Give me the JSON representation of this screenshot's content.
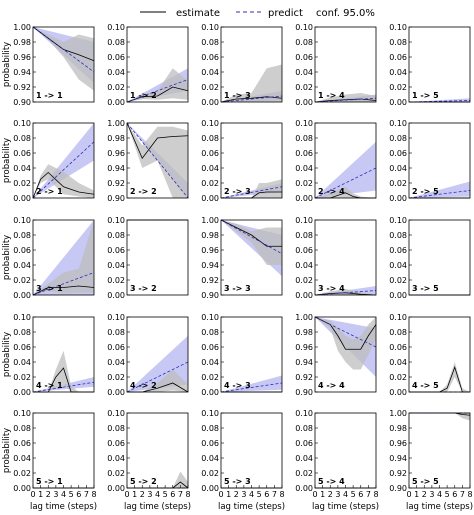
{
  "chart_data": {
    "type": "line",
    "grid_rows": 5,
    "grid_cols": 5,
    "x": [
      0,
      1,
      2,
      3,
      4,
      5,
      6,
      7,
      8
    ],
    "x_ticks": [
      "0",
      "1",
      "2",
      "3",
      "4",
      "5",
      "6",
      "7",
      "8"
    ],
    "xlabel": "lag time (steps)",
    "ylabel": "probability",
    "diag_ylim": [
      0.9,
      1.0
    ],
    "offdiag_ylim": [
      0.0,
      0.1
    ],
    "diag_yticks": [
      "0.90",
      "0.92",
      "0.94",
      "0.96",
      "0.98",
      "1.00"
    ],
    "offdiag_yticks": [
      "0.00",
      "0.02",
      "0.04",
      "0.06",
      "0.08",
      "0.10"
    ],
    "legend": {
      "position": "top-center",
      "estimate": "estimate",
      "predict": "predict",
      "conf": "conf. 95.0%"
    },
    "colors": {
      "estimate": "#000000",
      "estimate_band": "#bdbdbd",
      "predict": "#2e2eb8",
      "predict_band": "#aaaaee"
    },
    "panels": [
      {
        "row": 1,
        "col": 1,
        "label": "1 -> 1",
        "est_x": [
          0,
          2,
          4,
          6,
          8
        ],
        "estimate": [
          1.0,
          0.985,
          0.97,
          0.963,
          0.955
        ],
        "est_lo": [
          1.0,
          0.983,
          0.96,
          0.93,
          0.915
        ],
        "est_hi": [
          1.0,
          0.99,
          0.98,
          0.99,
          0.985
        ],
        "pred_x": [
          0,
          8
        ],
        "predict": [
          1.0,
          0.94
        ],
        "pred_lo": [
          1.0,
          0.925
        ],
        "pred_hi": [
          1.0,
          0.98
        ]
      },
      {
        "row": 1,
        "col": 2,
        "label": "1 -> 2",
        "est_x": [
          0,
          2,
          4,
          6,
          8
        ],
        "estimate": [
          0.0,
          0.007,
          0.008,
          0.02,
          0.015
        ],
        "est_lo": [
          0.0,
          0.004,
          0.003,
          0.005,
          0.003
        ],
        "est_hi": [
          0.0,
          0.01,
          0.015,
          0.045,
          0.028
        ],
        "pred_x": [
          0,
          8
        ],
        "predict": [
          0.0,
          0.03
        ],
        "pred_lo": [
          0.0,
          0.015
        ],
        "pred_hi": [
          0.0,
          0.045
        ]
      },
      {
        "row": 1,
        "col": 3,
        "label": "1 -> 3",
        "est_x": [
          0,
          2,
          4,
          6,
          8
        ],
        "estimate": [
          0.0,
          0.004,
          0.005,
          0.007,
          0.005
        ],
        "est_lo": [
          0.0,
          0.0,
          0.0,
          0.0,
          0.0
        ],
        "est_hi": [
          0.0,
          0.01,
          0.012,
          0.045,
          0.05
        ],
        "pred_x": [
          0,
          8
        ],
        "predict": [
          0.0,
          0.008
        ],
        "pred_lo": [
          0.0,
          0.002
        ],
        "pred_hi": [
          0.0,
          0.015
        ]
      },
      {
        "row": 1,
        "col": 4,
        "label": "1 -> 4",
        "est_x": [
          0,
          2,
          4,
          6,
          8
        ],
        "estimate": [
          0.0,
          0.002,
          0.003,
          0.004,
          0.002
        ],
        "est_lo": [
          0.0,
          0.0,
          0.0,
          0.0,
          0.0
        ],
        "est_hi": [
          0.0,
          0.006,
          0.01,
          0.012,
          0.008
        ],
        "pred_x": [
          0,
          8
        ],
        "predict": [
          0.0,
          0.005
        ],
        "pred_lo": [
          0.0,
          0.001
        ],
        "pred_hi": [
          0.0,
          0.01
        ]
      },
      {
        "row": 1,
        "col": 5,
        "label": "1 -> 5",
        "est_x": [
          0,
          8
        ],
        "estimate": [
          0.0,
          0.0
        ],
        "est_lo": [
          0.0,
          0.0
        ],
        "est_hi": [
          0.0,
          0.0
        ],
        "pred_x": [
          0,
          8
        ],
        "predict": [
          0.0,
          0.002
        ],
        "pred_lo": [
          0.0,
          0.0
        ],
        "pred_hi": [
          0.0,
          0.005
        ]
      },
      {
        "row": 2,
        "col": 1,
        "label": "2 -> 1",
        "est_x": [
          0,
          1,
          2,
          4,
          6,
          8
        ],
        "estimate": [
          0.0,
          0.025,
          0.034,
          0.015,
          0.008,
          0.005
        ],
        "est_lo": [
          0.0,
          0.02,
          0.025,
          0.005,
          0.002,
          0.0
        ],
        "est_hi": [
          0.0,
          0.03,
          0.045,
          0.035,
          0.02,
          0.01
        ],
        "pred_x": [
          0,
          8
        ],
        "predict": [
          0.0,
          0.075
        ],
        "pred_lo": [
          0.0,
          0.05
        ],
        "pred_hi": [
          0.0,
          0.1
        ]
      },
      {
        "row": 2,
        "col": 2,
        "label": "2 -> 2",
        "est_x": [
          0,
          2,
          4,
          6,
          8
        ],
        "estimate": [
          1.0,
          0.953,
          0.98,
          0.982,
          0.983
        ],
        "est_lo": [
          1.0,
          0.94,
          0.95,
          0.9,
          0.9
        ],
        "est_hi": [
          1.0,
          0.97,
          0.995,
          0.995,
          0.99
        ],
        "pred_x": [
          0,
          8
        ],
        "predict": [
          1.0,
          0.88
        ],
        "pred_lo": [
          1.0,
          0.85
        ],
        "pred_hi": [
          1.0,
          0.92
        ]
      },
      {
        "row": 2,
        "col": 3,
        "label": "2 -> 3",
        "est_x": [
          0,
          2,
          4,
          5,
          6,
          8
        ],
        "estimate": [
          0.0,
          0.0,
          0.0,
          0.007,
          0.008,
          0.008
        ],
        "est_lo": [
          0.0,
          0.0,
          0.0,
          0.0,
          0.0,
          0.0
        ],
        "est_hi": [
          0.0,
          0.0,
          0.0,
          0.02,
          0.02,
          0.025
        ],
        "pred_x": [
          0,
          8
        ],
        "predict": [
          0.0,
          0.015
        ],
        "pred_lo": [
          0.0,
          0.008
        ],
        "pred_hi": [
          0.0,
          0.02
        ]
      },
      {
        "row": 2,
        "col": 4,
        "label": "2 -> 4",
        "est_x": [
          0,
          2,
          4,
          5,
          6,
          8
        ],
        "estimate": [
          0.0,
          0.0,
          0.007,
          0.002,
          0.0,
          0.0
        ],
        "est_lo": [
          0.0,
          0.0,
          0.0,
          0.0,
          0.0,
          0.0
        ],
        "est_hi": [
          0.0,
          0.006,
          0.015,
          0.006,
          0.002,
          0.0
        ],
        "pred_x": [
          0,
          8
        ],
        "predict": [
          0.0,
          0.04
        ],
        "pred_lo": [
          0.0,
          0.01
        ],
        "pred_hi": [
          0.0,
          0.075
        ]
      },
      {
        "row": 2,
        "col": 5,
        "label": "2 -> 5",
        "est_x": [
          0,
          8
        ],
        "estimate": [
          0.0,
          0.0
        ],
        "est_lo": [
          0.0,
          0.0
        ],
        "est_hi": [
          0.0,
          0.0
        ],
        "pred_x": [
          0,
          8
        ],
        "predict": [
          0.0,
          0.01
        ],
        "pred_lo": [
          0.0,
          0.002
        ],
        "pred_hi": [
          0.0,
          0.022
        ]
      },
      {
        "row": 3,
        "col": 1,
        "label": "3 -> 1",
        "est_x": [
          0,
          2,
          4,
          6,
          8
        ],
        "estimate": [
          0.0,
          0.01,
          0.01,
          0.012,
          0.01
        ],
        "est_lo": [
          0.0,
          0.005,
          0.002,
          0.003,
          0.003
        ],
        "est_hi": [
          0.0,
          0.015,
          0.03,
          0.035,
          0.1
        ],
        "pred_x": [
          0,
          8
        ],
        "predict": [
          0.0,
          0.03
        ],
        "pred_lo": [
          0.0,
          0.0
        ],
        "pred_hi": [
          0.0,
          0.1
        ]
      },
      {
        "row": 3,
        "col": 2,
        "label": "3 -> 2",
        "est_x": [
          0,
          4,
          6,
          8
        ],
        "estimate": [
          0.9,
          0.9,
          0.945,
          0.945
        ],
        "est_lo": [
          0.9,
          0.9,
          0.9,
          0.92
        ],
        "est_hi": [
          0.9,
          0.9,
          0.98,
          0.99
        ],
        "pred_x": [
          0,
          8
        ],
        "predict": [
          0.9,
          0.9
        ],
        "pred_lo": [
          0.9,
          0.9
        ],
        "pred_hi": [
          0.9,
          0.9
        ]
      },
      {
        "row": 3,
        "col": 3,
        "label": "3 -> 3",
        "est_x": [
          0,
          2,
          4,
          6,
          8
        ],
        "estimate": [
          1.0,
          0.99,
          0.98,
          0.965,
          0.965
        ],
        "est_lo": [
          1.0,
          0.985,
          0.97,
          0.94,
          0.94
        ],
        "est_hi": [
          1.0,
          0.995,
          0.985,
          0.99,
          0.99
        ],
        "pred_x": [
          0,
          8
        ],
        "predict": [
          1.0,
          0.955
        ],
        "pred_lo": [
          1.0,
          0.925
        ],
        "pred_hi": [
          1.0,
          0.98
        ]
      },
      {
        "row": 3,
        "col": 4,
        "label": "3 -> 4",
        "est_x": [
          0,
          2,
          4,
          6,
          8
        ],
        "estimate": [
          0.0,
          0.002,
          0.003,
          0.001,
          0.0
        ],
        "est_lo": [
          0.0,
          0.0,
          0.0,
          0.0,
          0.0
        ],
        "est_hi": [
          0.0,
          0.005,
          0.008,
          0.004,
          0.0
        ],
        "pred_x": [
          0,
          8
        ],
        "predict": [
          0.0,
          0.006
        ],
        "pred_lo": [
          0.0,
          0.001
        ],
        "pred_hi": [
          0.0,
          0.012
        ]
      },
      {
        "row": 3,
        "col": 5,
        "label": "3 -> 5",
        "est_x": [
          0,
          8
        ],
        "estimate": [
          0.0,
          0.0
        ],
        "est_lo": [
          0.0,
          0.0
        ],
        "est_hi": [
          0.0,
          0.0
        ],
        "pred_x": [
          0,
          8
        ],
        "predict": [
          0.0,
          0.0
        ],
        "pred_lo": [
          0.0,
          0.0
        ],
        "pred_hi": [
          0.0,
          0.0
        ]
      },
      {
        "row": 4,
        "col": 1,
        "label": "4 -> 1",
        "est_x": [
          0,
          2,
          3,
          4,
          5,
          6,
          8
        ],
        "estimate": [
          0.0,
          0.0,
          0.02,
          0.032,
          0.0,
          0.0,
          0.0
        ],
        "est_lo": [
          0.0,
          0.0,
          0.005,
          0.01,
          0.0,
          0.0,
          0.0
        ],
        "est_hi": [
          0.0,
          0.0,
          0.03,
          0.055,
          0.008,
          0.0,
          0.0
        ],
        "pred_x": [
          0,
          8
        ],
        "predict": [
          0.0,
          0.013
        ],
        "pred_lo": [
          0.0,
          0.007
        ],
        "pred_hi": [
          0.0,
          0.02
        ]
      },
      {
        "row": 4,
        "col": 2,
        "label": "4 -> 2",
        "est_x": [
          0,
          2,
          4,
          6,
          8
        ],
        "estimate": [
          0.0,
          0.0,
          0.005,
          0.012,
          0.0
        ],
        "est_lo": [
          0.0,
          0.0,
          0.0,
          0.002,
          0.0
        ],
        "est_hi": [
          0.0,
          0.0,
          0.012,
          0.03,
          0.01
        ],
        "pred_x": [
          0,
          8
        ],
        "predict": [
          0.0,
          0.04
        ],
        "pred_lo": [
          0.0,
          0.01
        ],
        "pred_hi": [
          0.0,
          0.075
        ]
      },
      {
        "row": 4,
        "col": 3,
        "label": "4 -> 3",
        "est_x": [
          0,
          8
        ],
        "estimate": [
          0.0,
          0.0
        ],
        "est_lo": [
          0.0,
          0.0
        ],
        "est_hi": [
          0.0,
          0.0
        ],
        "pred_x": [
          0,
          8
        ],
        "predict": [
          0.0,
          0.012
        ],
        "pred_lo": [
          0.0,
          0.003
        ],
        "pred_hi": [
          0.0,
          0.022
        ]
      },
      {
        "row": 4,
        "col": 4,
        "label": "4 -> 4",
        "est_x": [
          0,
          2,
          3,
          4,
          5,
          6,
          7,
          8
        ],
        "estimate": [
          1.0,
          0.99,
          0.975,
          0.957,
          0.957,
          0.957,
          0.975,
          0.99
        ],
        "est_lo": [
          1.0,
          0.985,
          0.955,
          0.94,
          0.93,
          0.93,
          0.95,
          0.97
        ],
        "est_hi": [
          1.0,
          0.995,
          0.985,
          0.975,
          0.97,
          0.975,
          0.99,
          1.0
        ],
        "pred_x": [
          0,
          8
        ],
        "predict": [
          1.0,
          0.96
        ],
        "pred_lo": [
          1.0,
          0.92
        ],
        "pred_hi": [
          1.0,
          0.985
        ]
      },
      {
        "row": 4,
        "col": 5,
        "label": "4 -> 5",
        "est_x": [
          0,
          4,
          5,
          6,
          7,
          8
        ],
        "estimate": [
          0.0,
          0.0,
          0.005,
          0.033,
          0.0,
          0.0
        ],
        "est_lo": [
          0.0,
          0.0,
          0.0,
          0.02,
          0.0,
          0.0
        ],
        "est_hi": [
          0.0,
          0.0,
          0.01,
          0.04,
          0.005,
          0.0
        ],
        "pred_x": [
          0,
          8
        ],
        "predict": [
          0.0,
          0.0
        ],
        "pred_lo": [
          0.0,
          0.0
        ],
        "pred_hi": [
          0.0,
          0.0
        ]
      },
      {
        "row": 5,
        "col": 1,
        "label": "5 -> 1",
        "est_x": [
          0,
          8
        ],
        "estimate": [
          0.0,
          0.0
        ],
        "est_lo": [
          0.0,
          0.0
        ],
        "est_hi": [
          0.0,
          0.0
        ],
        "pred_x": [
          0,
          8
        ],
        "predict": [
          0.0,
          0.0
        ],
        "pred_lo": [
          0.0,
          0.0
        ],
        "pred_hi": [
          0.0,
          0.0
        ]
      },
      {
        "row": 5,
        "col": 2,
        "label": "5 -> 2",
        "est_x": [
          0,
          4,
          6,
          7,
          8
        ],
        "estimate": [
          0.0,
          0.0,
          0.0,
          0.008,
          0.0
        ],
        "est_lo": [
          0.0,
          0.0,
          0.0,
          0.0,
          0.0
        ],
        "est_hi": [
          0.0,
          0.0,
          0.0,
          0.022,
          0.008
        ],
        "pred_x": [
          0,
          8
        ],
        "predict": [
          0.0,
          0.0
        ],
        "pred_lo": [
          0.0,
          0.0
        ],
        "pred_hi": [
          0.0,
          0.0
        ]
      },
      {
        "row": 5,
        "col": 3,
        "label": "5 -> 3",
        "est_x": [
          0,
          8
        ],
        "estimate": [
          0.0,
          0.0
        ],
        "est_lo": [
          0.0,
          0.0
        ],
        "est_hi": [
          0.0,
          0.0
        ],
        "pred_x": [
          0,
          8
        ],
        "predict": [
          0.0,
          0.0
        ],
        "pred_lo": [
          0.0,
          0.0
        ],
        "pred_hi": [
          0.0,
          0.0
        ]
      },
      {
        "row": 5,
        "col": 4,
        "label": "5 -> 4",
        "est_x": [
          0,
          8
        ],
        "estimate": [
          0.0,
          0.0
        ],
        "est_lo": [
          0.0,
          0.0
        ],
        "est_hi": [
          0.0,
          0.0
        ],
        "pred_x": [
          0,
          8
        ],
        "predict": [
          0.0,
          0.0
        ],
        "pred_lo": [
          0.0,
          0.0
        ],
        "pred_hi": [
          0.0,
          0.0
        ]
      },
      {
        "row": 5,
        "col": 5,
        "label": "5 -> 5",
        "est_x": [
          0,
          6,
          7,
          8
        ],
        "estimate": [
          1.0,
          1.0,
          0.998,
          0.997
        ],
        "est_lo": [
          1.0,
          1.0,
          0.993,
          0.99
        ],
        "est_hi": [
          1.0,
          1.0,
          1.0,
          1.0
        ],
        "pred_x": [
          0,
          8
        ],
        "predict": [
          1.0,
          1.0
        ],
        "pred_lo": [
          1.0,
          1.0
        ],
        "pred_hi": [
          1.0,
          1.0
        ]
      }
    ]
  }
}
